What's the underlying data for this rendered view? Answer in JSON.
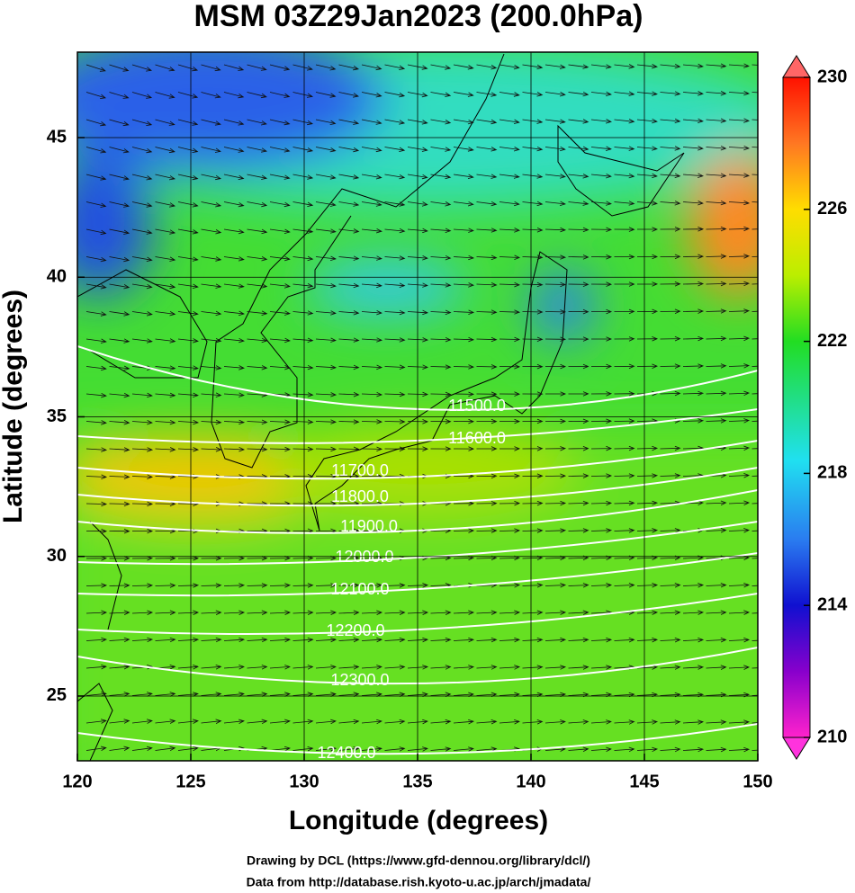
{
  "chart_data": {
    "type": "contour-map",
    "title": "MSM 03Z29Jan2023 (200.0hPa)",
    "xlabel": "Longitude (degrees)",
    "ylabel": "Latitude  (degrees)",
    "xlim": [
      120,
      150
    ],
    "xticks": [
      120,
      125,
      130,
      135,
      140,
      145,
      150
    ],
    "ylim": [
      22.68,
      48.06
    ],
    "yticks": [
      25,
      30,
      35,
      40,
      45
    ],
    "contours": [
      {
        "value": 11500,
        "label": "11500.0"
      },
      {
        "value": 11600,
        "label": "11600.0"
      },
      {
        "value": 11700,
        "label": "11700.0"
      },
      {
        "value": 11800,
        "label": "11800.0"
      },
      {
        "value": 11900,
        "label": "11900.0"
      },
      {
        "value": 12000,
        "label": "12000.0"
      },
      {
        "value": 12100,
        "label": "12100.0"
      },
      {
        "value": 12200,
        "label": "12200.0"
      },
      {
        "value": 12300,
        "label": "12300.0"
      },
      {
        "value": 12400,
        "label": "12400.0"
      }
    ],
    "colorbar": {
      "range": [
        210,
        230
      ],
      "ticks": [
        210,
        214,
        218,
        222,
        226,
        230
      ]
    },
    "credits": [
      "Drawing by DCL (https://www.gfd-dennou.org/library/dcl/)",
      "Data from http://database.rish.kyoto-u.ac.jp/arch/jmadata/"
    ]
  }
}
